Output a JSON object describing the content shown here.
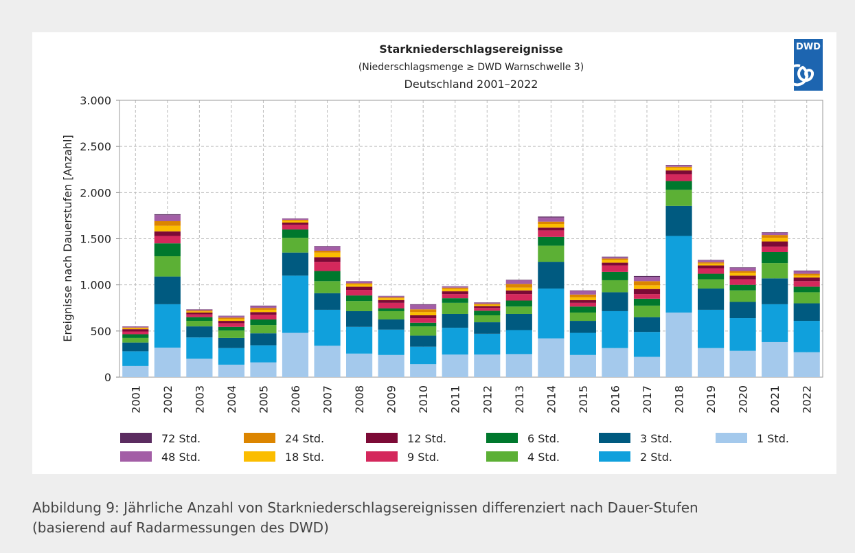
{
  "logo": "DWD",
  "caption_lines": [
    "Abbildung 9: Jährliche Anzahl von Starkniederschlagsereignissen differenziert nach Dauer-Stufen",
    "(basierend auf Radarmessungen des DWD)"
  ],
  "chart_data": {
    "type": "stacked_bar",
    "title": "Starkniederschlagsereignisse",
    "subtitle": "(Niederschlagsmenge ≥ DWD Warnschwelle 3)",
    "region": "Deutschland 2001–2022",
    "y_label": "Ereignisse nach Dauerstufen [Anzahl]",
    "ylim": [
      0,
      3000
    ],
    "yticks": [
      0,
      500,
      {
        "value": 1000,
        "label": "1.000"
      },
      {
        "value": 1500,
        "label": "1.500"
      },
      {
        "value": 2000,
        "label": "2.000"
      },
      {
        "value": 2500,
        "label": "2.500"
      },
      {
        "value": 3000,
        "label": "3.000"
      }
    ],
    "grid": true,
    "categories": [
      "2001",
      "2002",
      "2003",
      "2004",
      "2005",
      "2006",
      "2007",
      "2008",
      "2009",
      "2010",
      "2011",
      "2012",
      "2013",
      "2014",
      "2015",
      "2016",
      "2017",
      "2018",
      "2019",
      "2020",
      "2021",
      "2022"
    ],
    "series": [
      {
        "name": "1 Std.",
        "color": "#a4c9ec",
        "values": [
          120,
          320,
          200,
          135,
          160,
          480,
          340,
          255,
          240,
          140,
          245,
          245,
          250,
          420,
          240,
          315,
          220,
          700,
          315,
          285,
          380,
          270
        ]
      },
      {
        "name": "2 Std.",
        "color": "#10a0dc",
        "values": [
          160,
          470,
          230,
          180,
          185,
          620,
          390,
          290,
          275,
          190,
          290,
          225,
          260,
          540,
          240,
          400,
          270,
          830,
          415,
          355,
          410,
          340
        ]
      },
      {
        "name": "3 Std.",
        "color": "#005a80",
        "values": [
          95,
          300,
          120,
          110,
          130,
          250,
          180,
          170,
          110,
          120,
          150,
          125,
          175,
          290,
          130,
          205,
          160,
          325,
          230,
          175,
          280,
          190
        ]
      },
      {
        "name": "4 Std.",
        "color": "#5cb035",
        "values": [
          50,
          220,
          60,
          80,
          90,
          160,
          130,
          110,
          90,
          100,
          120,
          75,
          80,
          175,
          90,
          130,
          125,
          175,
          100,
          125,
          165,
          120
        ]
      },
      {
        "name": "6 Std.",
        "color": "#00782d",
        "values": [
          40,
          140,
          40,
          40,
          60,
          90,
          110,
          60,
          30,
          40,
          50,
          50,
          65,
          95,
          65,
          90,
          75,
          95,
          60,
          60,
          120,
          60
        ]
      },
      {
        "name": "9 Std.",
        "color": "#d4285c",
        "values": [
          30,
          80,
          30,
          40,
          50,
          50,
          100,
          60,
          60,
          50,
          45,
          30,
          70,
          70,
          40,
          70,
          50,
          75,
          60,
          60,
          60,
          60
        ]
      },
      {
        "name": "12 Std.",
        "color": "#7c0a36",
        "values": [
          25,
          50,
          20,
          25,
          30,
          25,
          50,
          35,
          30,
          30,
          30,
          20,
          40,
          30,
          30,
          30,
          55,
          40,
          30,
          40,
          55,
          40
        ]
      },
      {
        "name": "18 Std.",
        "color": "#fbbd00",
        "values": [
          10,
          60,
          12,
          20,
          25,
          20,
          50,
          25,
          20,
          35,
          25,
          15,
          30,
          40,
          30,
          30,
          40,
          30,
          20,
          30,
          40,
          20
        ]
      },
      {
        "name": "24 Std.",
        "color": "#dc8500",
        "values": [
          8,
          50,
          10,
          15,
          20,
          10,
          20,
          12,
          10,
          30,
          15,
          10,
          40,
          25,
          30,
          15,
          45,
          10,
          15,
          20,
          30,
          20
        ]
      },
      {
        "name": "48 Std.",
        "color": "#a35ea6",
        "values": [
          10,
          65,
          10,
          17,
          20,
          12,
          45,
          20,
          12,
          50,
          12,
          12,
          40,
          45,
          40,
          15,
          45,
          15,
          20,
          35,
          25,
          30
        ]
      },
      {
        "name": "72 Std.",
        "color": "#5b2c60",
        "values": [
          2,
          10,
          3,
          3,
          5,
          3,
          5,
          3,
          3,
          5,
          3,
          3,
          5,
          10,
          5,
          5,
          10,
          5,
          5,
          5,
          5,
          5
        ]
      }
    ]
  }
}
